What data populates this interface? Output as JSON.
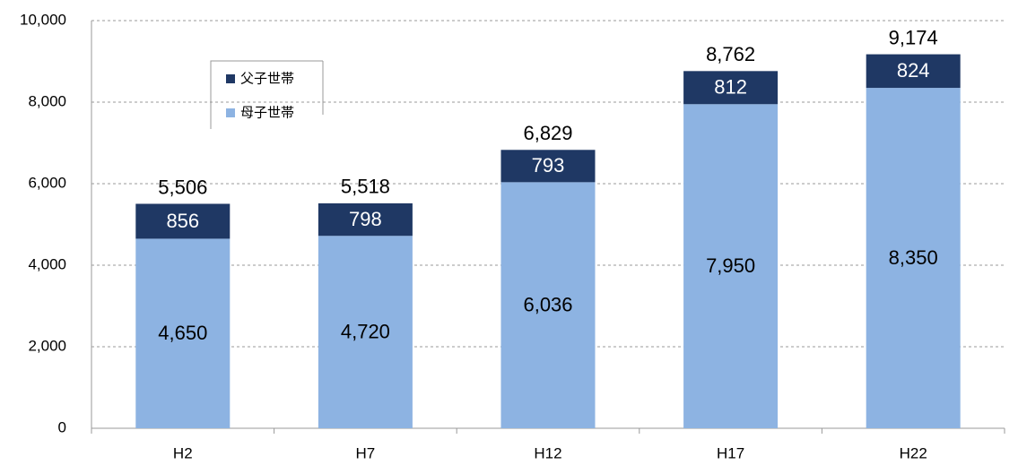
{
  "chart_data": {
    "type": "stacked-bar",
    "categories": [
      "H2",
      "H7",
      "H12",
      "H17",
      "H22"
    ],
    "series": [
      {
        "name": "母子世帯",
        "color": "#8db3e2",
        "values": [
          4650,
          4720,
          6036,
          7950,
          8350
        ],
        "value_labels": [
          "4,650",
          "4,720",
          "6,036",
          "7,950",
          "8,350"
        ],
        "label_color": "#000000"
      },
      {
        "name": "父子世帯",
        "color": "#1f3864",
        "values": [
          856,
          798,
          793,
          812,
          824
        ],
        "label_color": "#ffffff"
      }
    ],
    "totals": {
      "values": [
        5506,
        5518,
        6829,
        8762,
        9174
      ],
      "value_labels": [
        "5,506",
        "5,518",
        "6,829",
        "8,762",
        "9,174"
      ]
    },
    "ylim": [
      0,
      10000
    ],
    "yticks": [
      0,
      {
        "value": 2000,
        "label": "2,000"
      },
      {
        "value": 4000,
        "label": "4,000"
      },
      {
        "value": 6000,
        "label": "6,000"
      },
      {
        "value": 8000,
        "label": "8,000"
      },
      {
        "value": 10000,
        "label": "10,000"
      }
    ],
    "grid": true
  }
}
